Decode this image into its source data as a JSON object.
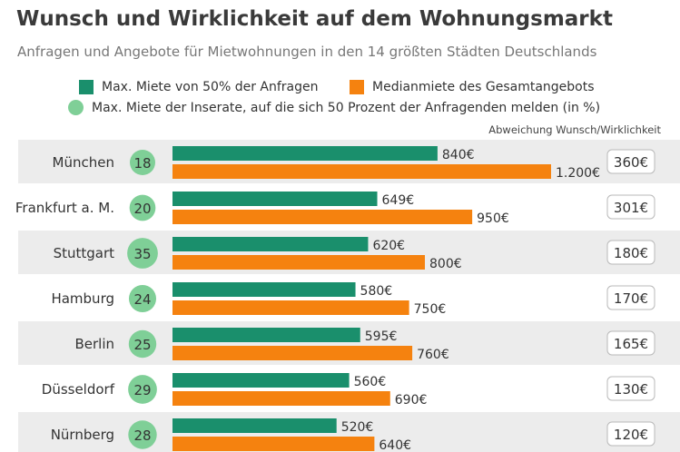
{
  "title": "Wunsch und Wirklichkeit auf dem Wohnungsmarkt",
  "subtitle": "Anfragen und Angebote für Mietwohnungen in den 14 größten Städten Deutschlands",
  "legend": [
    {
      "label": "Max. Miete von 50% der Anfragen",
      "color": "#1a8f6c",
      "shape": "square"
    },
    {
      "label": "Medianmiete des Gesamtangebots",
      "color": "#f5820f",
      "shape": "square"
    },
    {
      "label": "Max. Miete der Inserate, auf die sich 50 Prozent der Anfragenden melden (in %)",
      "color": "#7fcf97",
      "shape": "circle"
    }
  ],
  "deviation_header": "Abweichung Wunsch/Wirklichkeit",
  "colors": {
    "request": "#1a8f6c",
    "offer": "#f5820f",
    "circle": "#7fcf97",
    "row_shade": "#ececec"
  },
  "chart_data": {
    "type": "bar",
    "orientation": "horizontal",
    "title": "Wunsch und Wirklichkeit auf dem Wohnungsmarkt",
    "categories": [
      "München",
      "Frankfurt a. M.",
      "Stuttgart",
      "Hamburg",
      "Berlin",
      "Düsseldorf",
      "Nürnberg"
    ],
    "series": [
      {
        "name": "Max. Miete von 50% der Anfragen",
        "values": [
          840,
          649,
          620,
          580,
          595,
          560,
          520
        ],
        "labels": [
          "840€",
          "649€",
          "620€",
          "580€",
          "595€",
          "560€",
          "520€"
        ]
      },
      {
        "name": "Medianmiete des Gesamtangebots",
        "values": [
          1200,
          950,
          800,
          750,
          760,
          690,
          640
        ],
        "labels": [
          "1.200€",
          "950€",
          "800€",
          "750€",
          "760€",
          "690€",
          "640€"
        ]
      }
    ],
    "percent_values": [
      18,
      20,
      35,
      24,
      25,
      29,
      28
    ],
    "deviation_labels": [
      "360€",
      "301€",
      "180€",
      "170€",
      "165€",
      "130€",
      "120€"
    ],
    "xlim": [
      0,
      1230
    ],
    "grid": false
  }
}
